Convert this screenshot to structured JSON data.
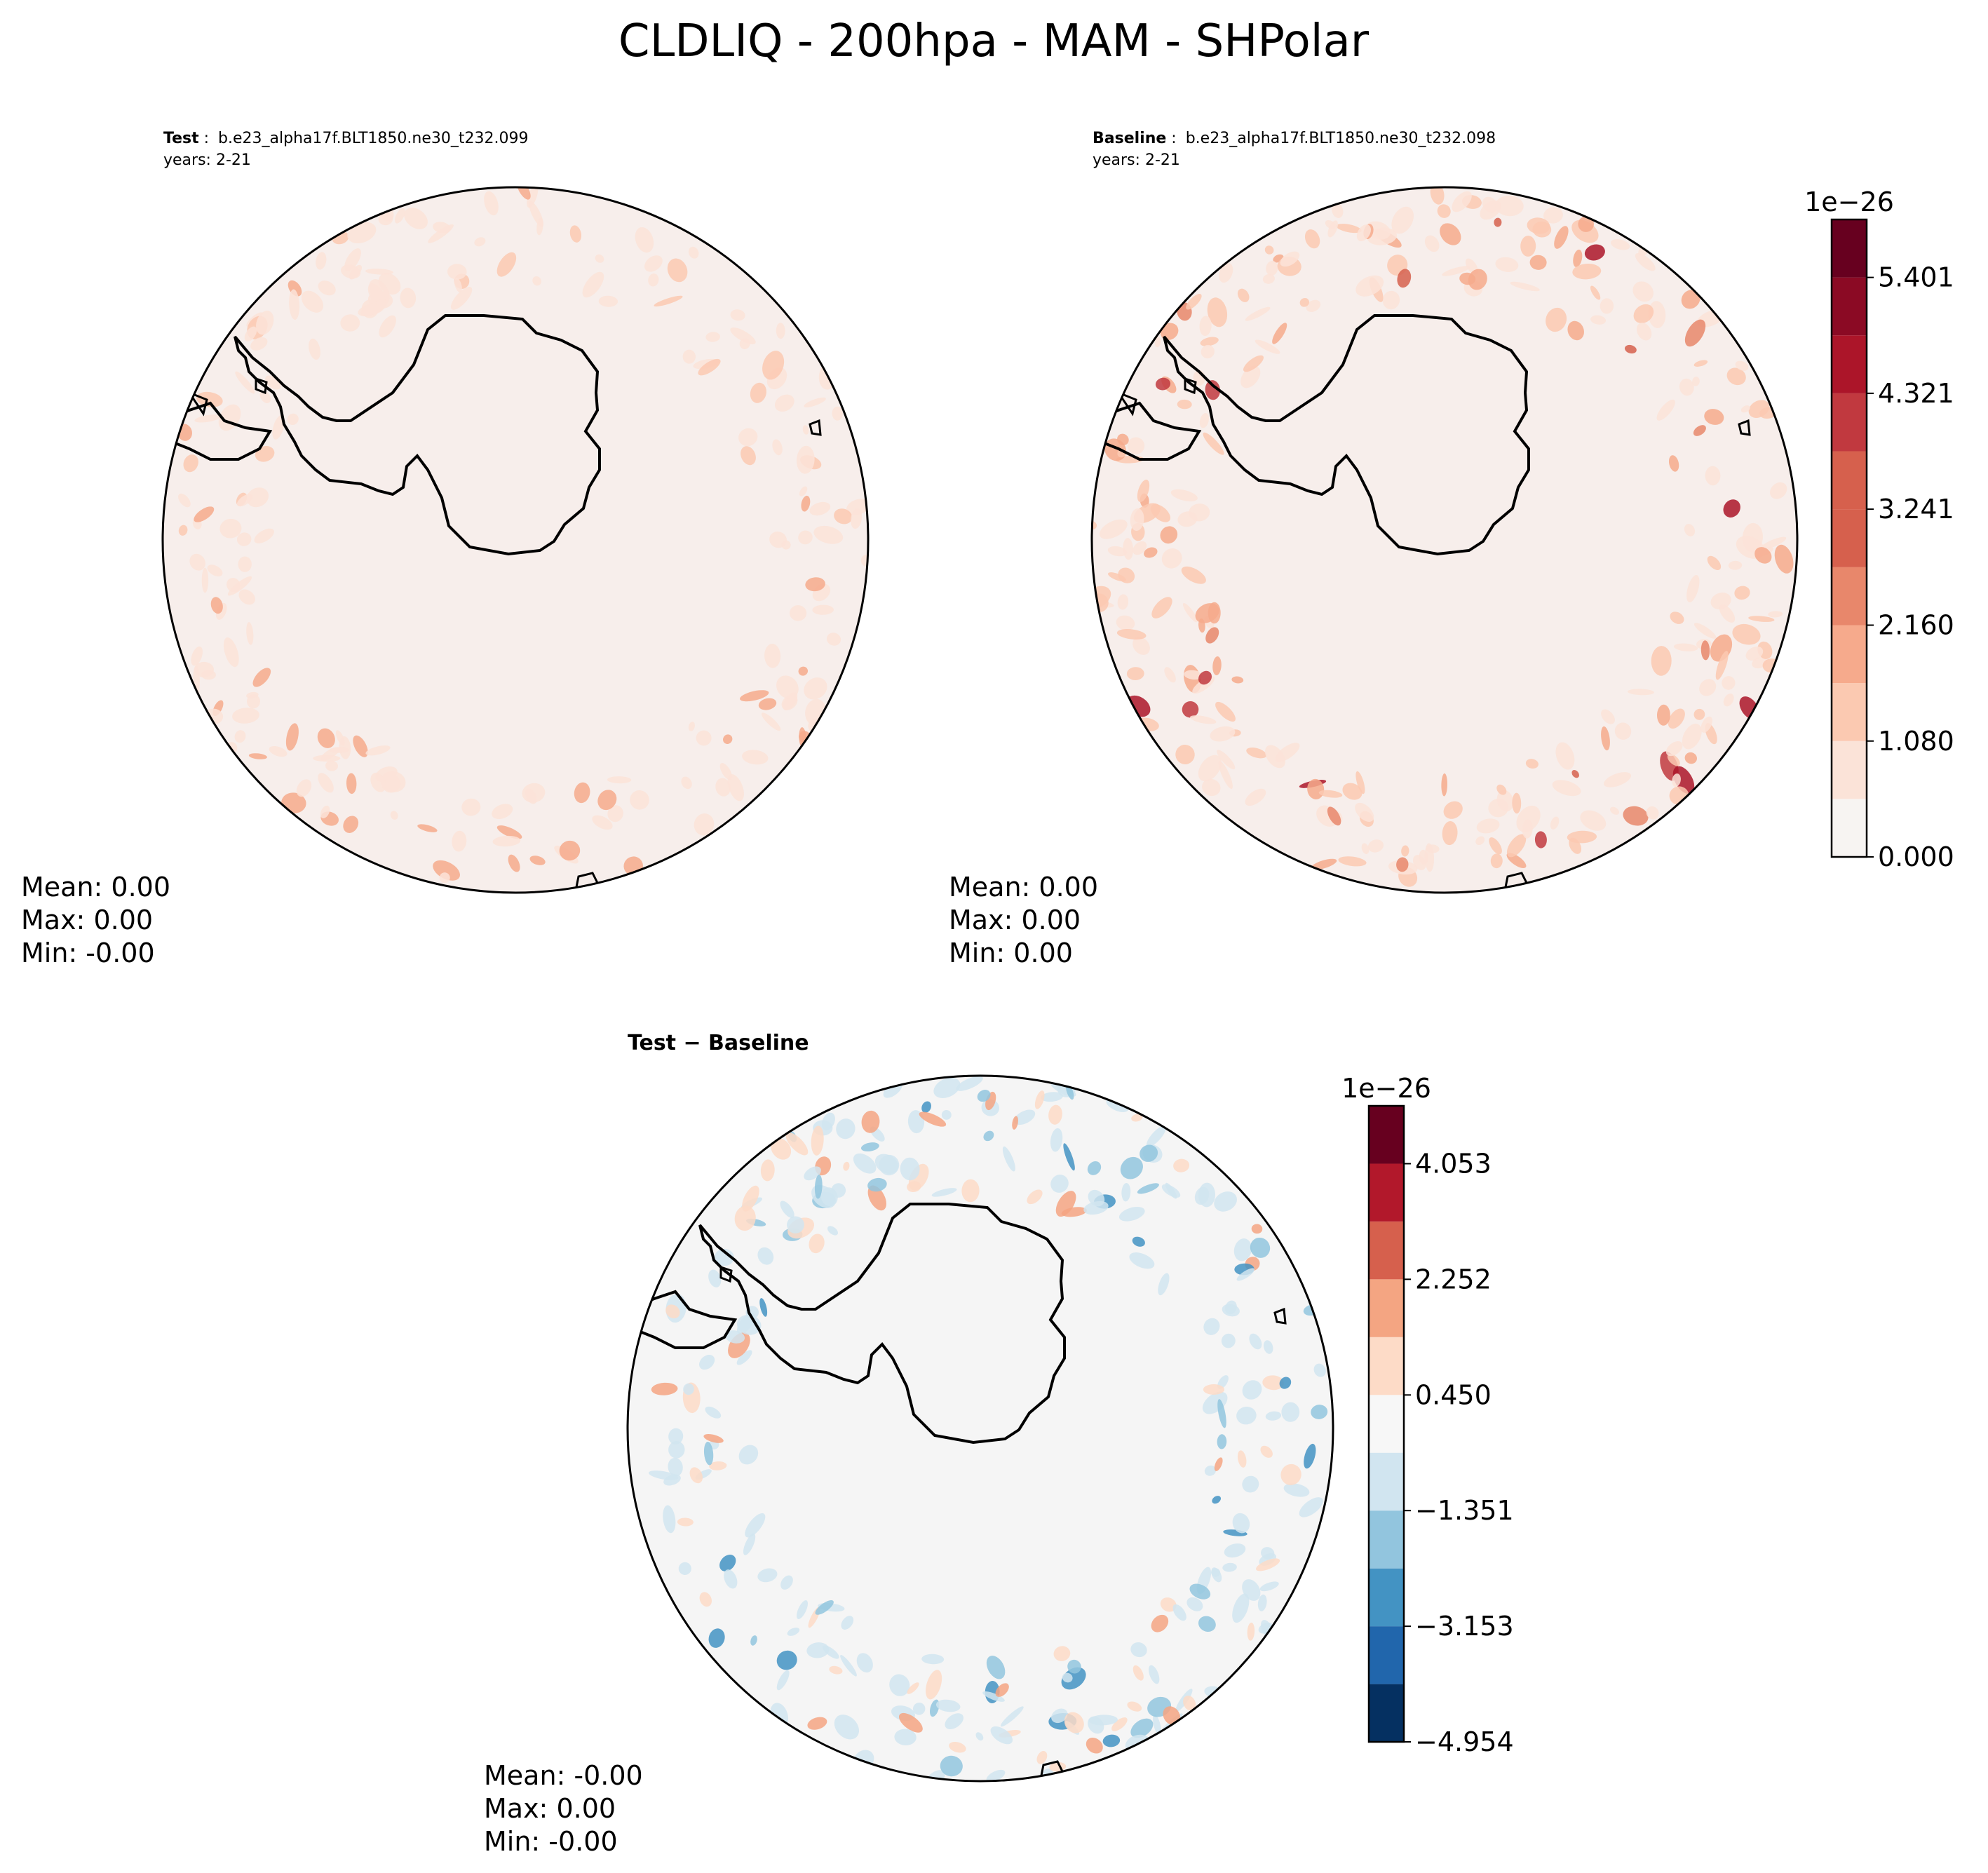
{
  "title": "CLDLIQ - 200hpa - MAM - SHPolar",
  "colors": {
    "ocean_base_test": "#f7eeeb",
    "ocean_base_diff": "#f5f5f5",
    "coast": "#000000",
    "cmap_reds": [
      "#f7f4f2",
      "#fbe3d8",
      "#fbc9b1",
      "#f6aa8c",
      "#e8876b",
      "#d6604d",
      "#c1393f",
      "#ac1529",
      "#8b0a24",
      "#67001f"
    ],
    "cmap_diff": [
      "#053061",
      "#2166ac",
      "#4393c3",
      "#92c5de",
      "#d1e5f0",
      "#f7f7f7",
      "#fddbc7",
      "#f4a582",
      "#d6604d",
      "#b2182b",
      "#67001f"
    ]
  },
  "panels": {
    "test": {
      "label_bold": "Test",
      "label_sep": ":",
      "case": "b.e23_alpha17f.BLT1850.ne30_t232.099",
      "years": "years: 2-21",
      "stats": {
        "mean": "Mean:  0.00",
        "max": "Max:  0.00",
        "min": "Min: -0.00"
      }
    },
    "baseline": {
      "label_bold": "Baseline",
      "label_sep": ":",
      "case": "b.e23_alpha17f.BLT1850.ne30_t232.098",
      "years": "years: 2-21",
      "stats": {
        "mean": "Mean:  0.00",
        "max": "Max:  0.00",
        "min": "Min:  0.00"
      }
    },
    "diff": {
      "label": "Test − Baseline",
      "stats": {
        "mean": "Mean: -0.00",
        "max": "Max:  0.00",
        "min": "Min: -0.00"
      }
    }
  },
  "chart_data": [
    {
      "type": "heatmap",
      "title": "Test : b.e23_alpha17f.BLT1850.ne30_t232.099",
      "projection": "south polar stereographic",
      "variable": "CLDLIQ",
      "level": "200hpa",
      "season": "MAM",
      "region": "SHPolar",
      "scale": "1e−26",
      "colorbar_shared_with": "Baseline",
      "stats": {
        "mean": 0.0,
        "max": 0.0,
        "min": -0.0
      }
    },
    {
      "type": "heatmap",
      "title": "Baseline : b.e23_alpha17f.BLT1850.ne30_t232.098",
      "projection": "south polar stereographic",
      "colorbar": {
        "scale_label": "1e−26",
        "levels": [
          0.0,
          0.54,
          1.08,
          1.62,
          2.16,
          2.7,
          3.241,
          3.781,
          4.321,
          4.861,
          5.401,
          5.941
        ],
        "tick_values": [
          0.0,
          1.08,
          2.16,
          3.241,
          4.321,
          5.401
        ],
        "tick_labels": [
          "0.000",
          "1.080",
          "2.160",
          "3.241",
          "4.321",
          "5.401"
        ],
        "colormap": "Reds"
      },
      "stats": {
        "mean": 0.0,
        "max": 0.0,
        "min": 0.0
      }
    },
    {
      "type": "heatmap",
      "title": "Test − Baseline",
      "projection": "south polar stereographic",
      "colorbar": {
        "scale_label": "1e−26",
        "levels": [
          -4.954,
          -4.054,
          -3.153,
          -2.252,
          -1.351,
          -0.45,
          0.45,
          1.351,
          2.252,
          3.153,
          4.053,
          4.954
        ],
        "tick_values": [
          -4.954,
          -3.153,
          -1.351,
          0.45,
          2.252,
          4.053
        ],
        "tick_labels": [
          "−4.954",
          "−3.153",
          "−1.351",
          "0.450",
          "2.252",
          "4.053"
        ],
        "colormap": "RdBu_r"
      },
      "stats": {
        "mean": -0.0,
        "max": 0.0,
        "min": -0.0
      }
    }
  ]
}
